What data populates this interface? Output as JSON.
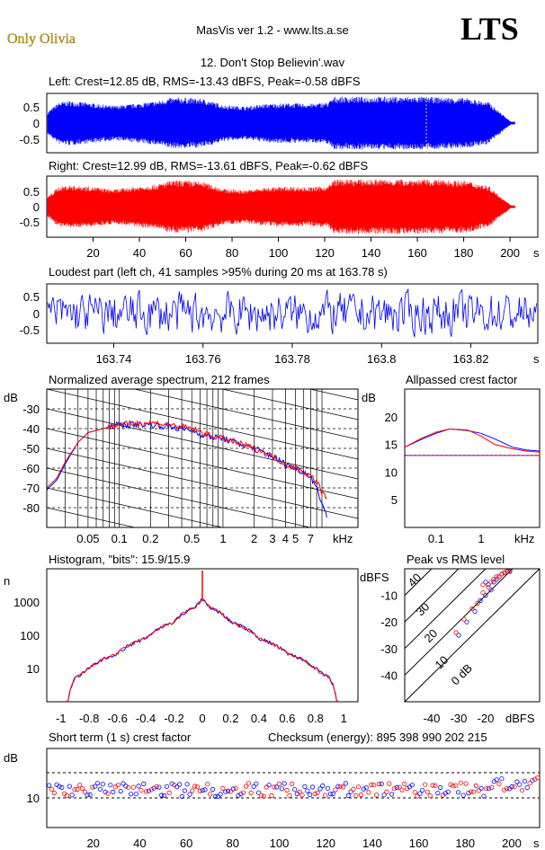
{
  "header": {
    "artist": "Only Olivia",
    "app": "MasVis ver 1.2 - www.lts.a.se",
    "logo": "LTS",
    "track": "12. Don't Stop Believin'.wav"
  },
  "colors": {
    "left": "#0000ff",
    "right": "#ff0000",
    "artist": "#c8a000"
  },
  "panels": {
    "left_wave": {
      "title": "Left: Crest=12.85 dB, RMS=-13.43 dBFS, Peak=-0.58 dBFS",
      "yticks": [
        "0.5",
        "0",
        "-0.5"
      ]
    },
    "right_wave": {
      "title": "Right: Crest=12.99 dB, RMS=-13.61 dBFS, Peak=-0.62 dBFS",
      "yticks": [
        "0.5",
        "0",
        "-0.5"
      ],
      "xticks": [
        "20",
        "40",
        "60",
        "80",
        "100",
        "120",
        "140",
        "160",
        "180",
        "200"
      ],
      "xunit": "s"
    },
    "loudest": {
      "title": "Loudest part (left  ch, 41 samples >95% during 20 ms at 163.78 s)",
      "yticks": [
        "0.5",
        "0",
        "-0.5"
      ],
      "xticks": [
        "163.74",
        "163.76",
        "163.78",
        "163.8",
        "163.82"
      ],
      "xunit": "s"
    },
    "spectrum": {
      "title": "Normalized average spectrum, 212 frames",
      "ylabel": "dB",
      "yticks": [
        "-30",
        "-40",
        "-50",
        "-60",
        "-70",
        "-80"
      ],
      "xticks": [
        "0.05",
        "0.1",
        "0.2",
        "0.5",
        "1",
        "2",
        "3",
        "4",
        "5",
        "7"
      ],
      "xunit": "kHz"
    },
    "allpass": {
      "title": "Allpassed crest factor",
      "ylabel": "dB",
      "yticks": [
        "20",
        "15",
        "10",
        "5"
      ],
      "xticks": [
        "0.1",
        "1"
      ],
      "xunit": "kHz"
    },
    "histogram": {
      "title": "Histogram, \"bits\": 15.9/15.9",
      "ylabel": "n",
      "yticks": [
        "1000",
        "100",
        "10"
      ],
      "xticks": [
        "-1",
        "-0.8",
        "-0.6",
        "-0.4",
        "-0.2",
        "0",
        "0.2",
        "0.4",
        "0.6",
        "0.8",
        "1"
      ]
    },
    "peakrms": {
      "title": "Peak vs RMS level",
      "ylabel": "dBFS",
      "yticks": [
        "-10",
        "-20",
        "-30",
        "-40"
      ],
      "xticks": [
        "-40",
        "-30",
        "-20"
      ],
      "xunit": "dBFS",
      "diag_labels": [
        "40",
        "30",
        "20",
        "10",
        "0 dB"
      ]
    },
    "crest": {
      "title": "Short term (1 s) crest factor",
      "checksum": "Checksum (energy):   895 398 990 202 215",
      "ylabel": "dB",
      "yticks": [
        "10"
      ],
      "xticks": [
        "20",
        "40",
        "60",
        "80",
        "100",
        "120",
        "140",
        "160",
        "180",
        "200"
      ],
      "xunit": "s"
    }
  },
  "chart_data": [
    {
      "type": "line",
      "title": "Left: Crest=12.85 dB, RMS=-13.43 dBFS, Peak=-0.58 dBFS",
      "xlim": [
        0,
        212
      ],
      "ylim": [
        -1,
        1
      ],
      "envelope_x": [
        0,
        5,
        10,
        20,
        30,
        40,
        50,
        55,
        60,
        70,
        80,
        90,
        100,
        110,
        120,
        127,
        130,
        140,
        150,
        160,
        170,
        180,
        190,
        200,
        205,
        210
      ],
      "envelope_y": [
        0.4,
        0.75,
        0.8,
        0.72,
        0.62,
        0.7,
        0.8,
        0.9,
        0.92,
        0.88,
        0.65,
        0.6,
        0.7,
        0.72,
        0.7,
        0.75,
        0.95,
        0.95,
        0.95,
        0.95,
        0.95,
        0.93,
        0.9,
        0.75,
        0.4,
        0.05
      ]
    },
    {
      "type": "line",
      "title": "Right: Crest=12.99 dB, RMS=-13.61 dBFS, Peak=-0.62 dBFS",
      "xlim": [
        0,
        212
      ],
      "ylim": [
        -1,
        1
      ],
      "envelope_x": [
        0,
        5,
        10,
        20,
        30,
        40,
        50,
        55,
        60,
        70,
        80,
        90,
        100,
        110,
        120,
        127,
        130,
        140,
        150,
        160,
        170,
        180,
        190,
        200,
        205,
        210
      ],
      "envelope_y": [
        0.35,
        0.7,
        0.75,
        0.7,
        0.6,
        0.7,
        0.78,
        0.9,
        0.92,
        0.88,
        0.62,
        0.58,
        0.68,
        0.7,
        0.68,
        0.72,
        0.95,
        0.95,
        0.95,
        0.95,
        0.95,
        0.93,
        0.9,
        0.72,
        0.38,
        0.05
      ]
    },
    {
      "type": "line",
      "title": "Loudest part",
      "xlim": [
        163.725,
        163.835
      ],
      "ylim": [
        -1,
        1
      ],
      "amplitude": 0.55
    },
    {
      "type": "line",
      "title": "Normalized average spectrum, 212 frames",
      "ylabel": "dB",
      "xlabel": "kHz",
      "ylim": [
        -90,
        -20
      ],
      "series": [
        {
          "name": "L",
          "x": [
            0.02,
            0.025,
            0.03,
            0.04,
            0.05,
            0.07,
            0.1,
            0.2,
            0.3,
            0.5,
            0.7,
            1,
            1.5,
            2,
            3,
            4,
            5,
            6,
            7,
            8,
            10
          ],
          "y": [
            -71,
            -66,
            -58,
            -47,
            -42,
            -40,
            -38,
            -38,
            -39,
            -41,
            -44,
            -45,
            -48,
            -50,
            -54,
            -58,
            -60,
            -62,
            -64,
            -70,
            -84
          ]
        },
        {
          "name": "R",
          "x": [
            0.02,
            0.025,
            0.03,
            0.04,
            0.05,
            0.07,
            0.1,
            0.2,
            0.3,
            0.5,
            0.7,
            1,
            1.5,
            2,
            3,
            4,
            5,
            6,
            7,
            8,
            10
          ],
          "y": [
            -70,
            -65,
            -57,
            -47,
            -42,
            -40,
            -38,
            -37,
            -38,
            -40,
            -43,
            -45,
            -48,
            -50,
            -54,
            -58,
            -60,
            -62,
            -64,
            -67,
            -76
          ]
        }
      ]
    },
    {
      "type": "line",
      "title": "Allpassed crest factor",
      "ylabel": "dB",
      "xlabel": "kHz",
      "ylim": [
        0,
        25
      ],
      "threshold": 13,
      "series": [
        {
          "name": "L",
          "x": [
            0.02,
            0.05,
            0.1,
            0.2,
            0.5,
            1,
            2,
            5,
            10,
            20
          ],
          "y": [
            14.5,
            16,
            17,
            17.8,
            17.5,
            17,
            16,
            14.5,
            14,
            13.8
          ]
        },
        {
          "name": "R",
          "x": [
            0.02,
            0.05,
            0.1,
            0.2,
            0.5,
            1,
            2,
            5,
            10,
            20
          ],
          "y": [
            14.5,
            16.2,
            17.2,
            17.8,
            17.6,
            16.5,
            15,
            14.2,
            13.8,
            13.6
          ]
        }
      ]
    },
    {
      "type": "line",
      "title": "Histogram, \"bits\": 15.9/15.9",
      "ylabel": "n",
      "xlim": [
        -1.1,
        1.1
      ],
      "ylog": true,
      "ylim": [
        1,
        10000
      ],
      "series": [
        {
          "name": "L",
          "x": [
            -0.95,
            -0.9,
            -0.85,
            -0.8,
            -0.6,
            -0.4,
            -0.2,
            -0.05,
            0,
            0.05,
            0.2,
            0.4,
            0.6,
            0.8,
            0.85,
            0.9,
            0.95
          ],
          "y": [
            1,
            5,
            7,
            10,
            28,
            80,
            250,
            700,
            1200,
            700,
            250,
            80,
            28,
            10,
            7,
            5,
            1
          ]
        },
        {
          "name": "R",
          "x": [
            -0.95,
            -0.9,
            -0.85,
            -0.8,
            -0.6,
            -0.4,
            -0.2,
            -0.05,
            0,
            0.05,
            0.2,
            0.4,
            0.6,
            0.8,
            0.85,
            0.9,
            0.95
          ],
          "y": [
            1,
            5,
            7,
            10,
            28,
            80,
            250,
            700,
            1200,
            700,
            250,
            80,
            28,
            10,
            7,
            5,
            1
          ]
        }
      ]
    },
    {
      "type": "scatter",
      "title": "Peak vs RMS level",
      "xlabel": "dBFS",
      "ylabel": "dBFS",
      "xlim": [
        -50,
        0
      ],
      "ylim": [
        -50,
        0
      ],
      "series": [
        {
          "name": "L",
          "points": [
            [
              -30,
              -25
            ],
            [
              -27,
              -20
            ],
            [
              -24,
              -16
            ],
            [
              -22,
              -12
            ],
            [
              -20,
              -10
            ],
            [
              -18,
              -8
            ],
            [
              -17,
              -5
            ],
            [
              -16,
              -4
            ],
            [
              -15,
              -3
            ],
            [
              -14,
              -2
            ],
            [
              -13,
              -1.5
            ],
            [
              -12,
              -1
            ],
            [
              -11,
              -1
            ],
            [
              -20,
              -5
            ],
            [
              -19,
              -6
            ]
          ]
        },
        {
          "name": "R",
          "points": [
            [
              -31,
              -24
            ],
            [
              -28,
              -19
            ],
            [
              -25,
              -15
            ],
            [
              -23,
              -13
            ],
            [
              -21,
              -9
            ],
            [
              -19,
              -7
            ],
            [
              -17,
              -4
            ],
            [
              -16,
              -3
            ],
            [
              -15,
              -3
            ],
            [
              -14,
              -2
            ],
            [
              -13,
              -1.5
            ],
            [
              -12,
              -1
            ],
            [
              -11,
              -0.8
            ],
            [
              -21,
              -6
            ],
            [
              -18,
              -5
            ]
          ]
        }
      ]
    },
    {
      "type": "scatter",
      "title": "Short term (1 s) crest factor",
      "ylabel": "dB",
      "xlim": [
        0,
        212
      ],
      "ylim": [
        0,
        25
      ],
      "reference_lines": [
        10,
        20
      ],
      "mean": 12
    }
  ]
}
